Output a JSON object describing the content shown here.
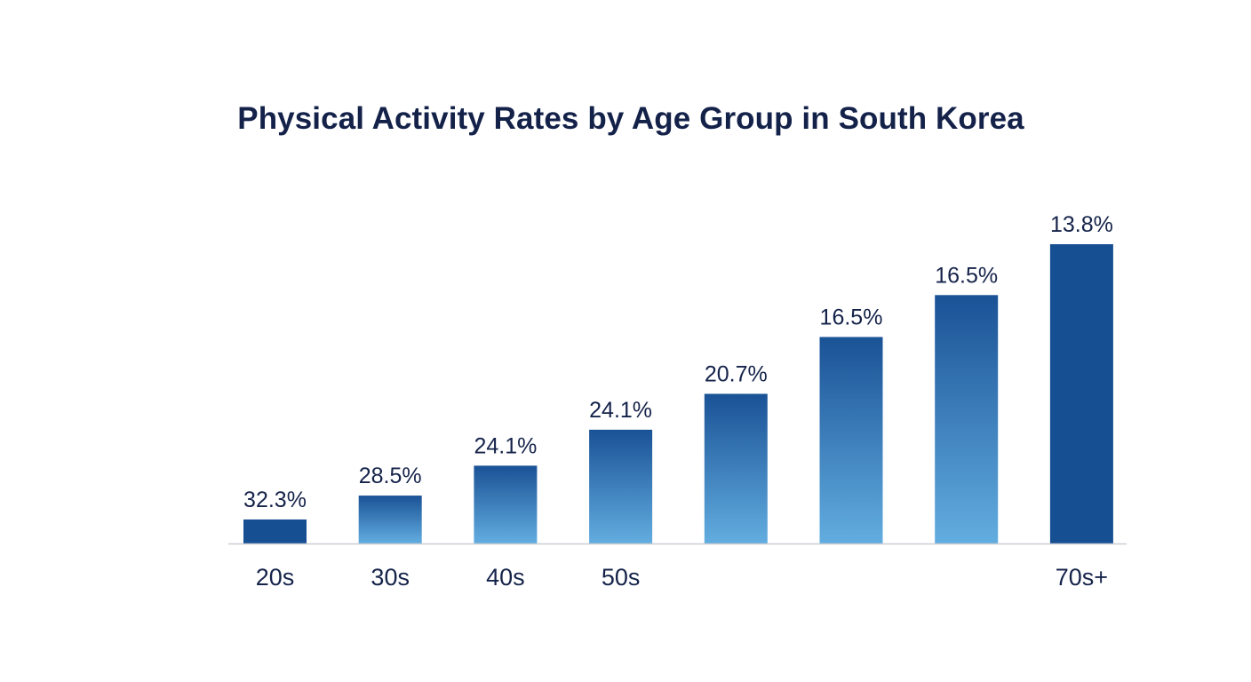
{
  "chart_data": {
    "type": "bar",
    "title": "Physical Activity Rates by Age Group in South Korea",
    "xlabel": "",
    "ylabel": "",
    "categories": [
      "20s",
      "30s",
      "40s",
      "50s",
      "",
      "",
      "",
      "70s+"
    ],
    "values": [
      32.3,
      28.5,
      24.1,
      24.1,
      20.7,
      16.5,
      16.5,
      13.8
    ],
    "value_labels": [
      "32.3%",
      "28.5%",
      "24.1%",
      "24.1%",
      "20.7%",
      "16.5%",
      "16.5%",
      "13.8%"
    ],
    "bar_fill_levels": [
      0.08,
      0.16,
      0.26,
      0.38,
      0.5,
      0.69,
      0.83,
      1.0
    ],
    "grid": false,
    "legend": "none",
    "colors": {
      "bar_top": "#1a5296",
      "bar_bottom": "#62ade0",
      "bar_solid": "#174f93",
      "axis": "#c9ced6",
      "text": "#15234a"
    }
  }
}
